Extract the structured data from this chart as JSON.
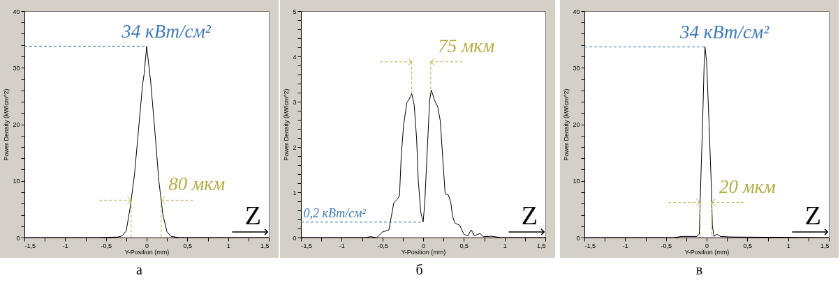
{
  "chart_data": [
    {
      "type": "line",
      "title": "а",
      "xlabel": "Y-Position (mm)",
      "ylabel": "Power Density (kW/cm^2)",
      "xlim": [
        -1.5,
        1.5
      ],
      "ylim": [
        0,
        40
      ],
      "xticks": [
        {
          "value": -1.5,
          "label": "-1,5"
        },
        {
          "value": -1.25,
          "label": null
        },
        -1,
        {
          "value": -0.75,
          "label": null
        },
        {
          "value": -0.5,
          "label": "-0,5"
        },
        {
          "value": -0.25,
          "label": null
        },
        0,
        {
          "value": 0.25,
          "label": null
        },
        {
          "value": 0.5,
          "label": "0,5"
        },
        {
          "value": 0.75,
          "label": null
        },
        1,
        {
          "value": 1.25,
          "label": null
        },
        {
          "value": 1.5,
          "label": "1,5"
        }
      ],
      "yticks": [
        0,
        {
          "value": 2,
          "label": null
        },
        {
          "value": 4,
          "label": null
        },
        {
          "value": 6,
          "label": null
        },
        {
          "value": 8,
          "label": null
        },
        10,
        {
          "value": 12,
          "label": null
        },
        {
          "value": 14,
          "label": null
        },
        {
          "value": 16,
          "label": null
        },
        {
          "value": 18,
          "label": null
        },
        20,
        {
          "value": 22,
          "label": null
        },
        {
          "value": 24,
          "label": null
        },
        {
          "value": 26,
          "label": null
        },
        {
          "value": 28,
          "label": null
        },
        30,
        {
          "value": 32,
          "label": null
        },
        {
          "value": 34,
          "label": null
        },
        {
          "value": 36,
          "label": null
        },
        {
          "value": 38,
          "label": null
        },
        40
      ],
      "x": [
        -1.5,
        -0.6,
        -0.35,
        -0.3,
        -0.25,
        -0.2,
        -0.15,
        -0.1,
        -0.05,
        -0.03,
        0,
        0.05,
        0.1,
        0.15,
        0.2,
        0.25,
        0.3,
        0.4,
        1.5
      ],
      "series": [
        {
          "color": "#000000",
          "values": [
            0,
            0,
            0.1,
            0.3,
            1.2,
            5.5,
            11,
            19,
            27,
            29,
            33.8,
            27.5,
            19,
            10,
            4,
            1,
            0.2,
            0,
            0
          ]
        }
      ],
      "annotations": [
        {
          "text": "34 кВт/см²",
          "x": 0,
          "y": 33.8
        },
        {
          "text": "80 мкм",
          "x": -0.19,
          "y": 6.6
        },
        "Z"
      ]
    },
    {
      "type": "line",
      "title": "б",
      "xlabel": "Y-Position (mm)",
      "ylabel": "Power Density (kW/cm^2)",
      "xlim": [
        -1.5,
        1.5
      ],
      "ylim": [
        0,
        5
      ],
      "xticks": [
        {
          "value": -1.5,
          "label": "-1,5"
        },
        {
          "value": -1.25,
          "label": null
        },
        -1,
        {
          "value": -0.75,
          "label": null
        },
        {
          "value": -0.5,
          "label": "-0,5"
        },
        {
          "value": -0.25,
          "label": null
        },
        0,
        {
          "value": 0.25,
          "label": null
        },
        {
          "value": 0.5,
          "label": "0,5"
        },
        {
          "value": 0.75,
          "label": null
        },
        1,
        {
          "value": 1.25,
          "label": null
        },
        {
          "value": 1.5,
          "label": "1,5"
        }
      ],
      "yticks": [
        0,
        {
          "value": 0.2,
          "label": null
        },
        {
          "value": 0.4,
          "label": null
        },
        {
          "value": 0.6,
          "label": null
        },
        {
          "value": 0.8,
          "label": null
        },
        1,
        {
          "value": 1.2,
          "label": null
        },
        {
          "value": 1.4,
          "label": null
        },
        {
          "value": 1.6,
          "label": null
        },
        {
          "value": 1.8,
          "label": null
        },
        2,
        {
          "value": 2.2,
          "label": null
        },
        {
          "value": 2.4,
          "label": null
        },
        {
          "value": 2.6,
          "label": null
        },
        {
          "value": 2.8,
          "label": null
        },
        3,
        {
          "value": 3.2,
          "label": null
        },
        {
          "value": 3.4,
          "label": null
        },
        {
          "value": 3.6,
          "label": null
        },
        {
          "value": 3.8,
          "label": null
        },
        4,
        {
          "value": 4.2,
          "label": null
        },
        {
          "value": 4.4,
          "label": null
        },
        {
          "value": 4.6,
          "label": null
        },
        {
          "value": 4.8,
          "label": null
        },
        5
      ],
      "x": [
        -1.5,
        -0.7,
        -0.65,
        -0.57,
        -0.5,
        -0.42,
        -0.39,
        -0.36,
        -0.32,
        -0.29,
        -0.27,
        -0.24,
        -0.2,
        -0.17,
        -0.14,
        -0.11,
        -0.08,
        -0.06,
        -0.03,
        0,
        0.02,
        0.06,
        0.08,
        0.1,
        0.14,
        0.18,
        0.21,
        0.24,
        0.27,
        0.31,
        0.34,
        0.36,
        0.39,
        0.45,
        0.5,
        0.55,
        0.59,
        0.63,
        0.7,
        0.74,
        0.84,
        0.95,
        1.5
      ],
      "series": [
        {
          "color": "#000000",
          "values": [
            0,
            0,
            0.02,
            0,
            0.12,
            0.17,
            0.47,
            0.77,
            0.84,
            0.92,
            1.77,
            2.48,
            2.98,
            3.06,
            3.18,
            2.93,
            2.18,
            1.27,
            0.57,
            0.34,
            0.77,
            2.28,
            3.03,
            3.26,
            3.03,
            2.88,
            2.58,
            1.77,
            0.97,
            0.94,
            0.77,
            0.47,
            0.32,
            0.27,
            0.07,
            0.04,
            0.17,
            0.04,
            0.09,
            0.02,
            0.03,
            0,
            0
          ]
        }
      ],
      "annotations": [
        {
          "text": "0,2 кВт/см²",
          "x": 0,
          "y": 0.34
        },
        {
          "text": "75 мкм",
          "x": -0.14,
          "y": 3.18
        },
        "Z"
      ]
    },
    {
      "type": "line",
      "title": "в",
      "xlabel": "Y-Position (mm)",
      "ylabel": "Power Density (kW/cm^2)",
      "xlim": [
        -1.5,
        1.5
      ],
      "ylim": [
        0,
        40
      ],
      "xticks": [
        {
          "value": -1.5,
          "label": "-1,5"
        },
        {
          "value": -1.25,
          "label": null
        },
        -1,
        {
          "value": -0.75,
          "label": null
        },
        {
          "value": -0.5,
          "label": "-0,5"
        },
        {
          "value": -0.25,
          "label": null
        },
        0,
        {
          "value": 0.25,
          "label": null
        },
        {
          "value": 0.5,
          "label": "0,5"
        },
        {
          "value": 0.75,
          "label": null
        },
        1,
        {
          "value": 1.25,
          "label": null
        },
        {
          "value": 1.5,
          "label": "1,5"
        }
      ],
      "yticks": [
        0,
        {
          "value": 2,
          "label": null
        },
        {
          "value": 4,
          "label": null
        },
        {
          "value": 6,
          "label": null
        },
        {
          "value": 8,
          "label": null
        },
        10,
        {
          "value": 12,
          "label": null
        },
        {
          "value": 14,
          "label": null
        },
        {
          "value": 16,
          "label": null
        },
        {
          "value": 18,
          "label": null
        },
        20,
        {
          "value": 22,
          "label": null
        },
        {
          "value": 24,
          "label": null
        },
        {
          "value": 26,
          "label": null
        },
        {
          "value": 28,
          "label": null
        },
        30,
        {
          "value": 32,
          "label": null
        },
        {
          "value": 34,
          "label": null
        },
        {
          "value": 36,
          "label": null
        },
        {
          "value": 38,
          "label": null
        },
        40
      ],
      "x": [
        -1.5,
        -0.4,
        -0.3,
        -0.12,
        -0.09,
        -0.08,
        -0.05,
        -0.03,
        -0.02,
        0,
        0.03,
        0.06,
        0.07,
        0.09,
        0.13,
        0.17,
        0.3,
        1.5
      ],
      "series": [
        {
          "color": "#000000",
          "values": [
            0,
            0,
            0.2,
            0.2,
            0.6,
            6.2,
            20,
            31,
            33.7,
            31,
            20,
            8.2,
            2.2,
            0.2,
            0.6,
            0.2,
            0.1,
            0
          ]
        }
      ],
      "annotations": [
        {
          "text": "34 кВт/см²",
          "x": -0.02,
          "y": 33.7
        },
        {
          "text": "20 мкм",
          "x": -0.08,
          "y": 6.2
        },
        "Z"
      ]
    }
  ]
}
